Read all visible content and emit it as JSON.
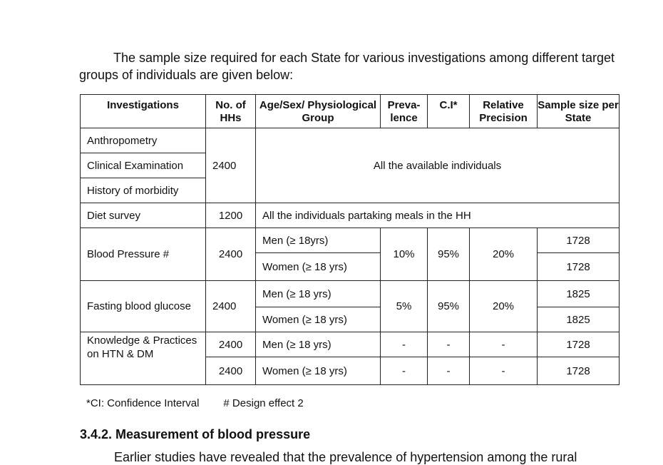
{
  "intro": {
    "text": "The sample size required for each State for various investigations among different target groups of individuals are given below:"
  },
  "table": {
    "headers": {
      "investigations": "Investigations",
      "hhs": "No. of HHs",
      "group": "Age/Sex/ Physiological Group",
      "prevalence": "Preva- lence",
      "ci": "C.I*",
      "precision": "Relative Precision",
      "sample": "Sample size per State"
    },
    "rows": {
      "anthropometry": "Anthropometry",
      "clinical": "Clinical Examination",
      "morbidity": "History of morbidity",
      "group1_hhs": "2400",
      "all_individuals": "All the available individuals",
      "diet": "Diet survey",
      "diet_hhs": "1200",
      "diet_group": "All the individuals partaking meals in the HH",
      "bp": {
        "name": "Blood Pressure #",
        "hhs": "2400",
        "men": "Men (≥ 18yrs)",
        "women": "Women (≥ 18 yrs)",
        "prevalence": "10%",
        "ci": "95%",
        "precision": "20%",
        "sample_men": "1728",
        "sample_women": "1728"
      },
      "fbg": {
        "name": "Fasting blood glucose",
        "hhs": "2400",
        "men": "Men (≥ 18 yrs)",
        "women": "Women (≥ 18 yrs)",
        "prevalence": "5%",
        "ci": "95%",
        "precision": "20%",
        "sample_men": "1825",
        "sample_women": "1825"
      },
      "kp": {
        "name": "Knowledge & Practices on HTN & DM",
        "hhs_men": "2400",
        "hhs_women": "2400",
        "men": "Men (≥ 18 yrs)",
        "women": "Women (≥ 18 yrs)",
        "prevalence_men": "-",
        "ci_men": "-",
        "precision_men": "-",
        "prevalence_women": "-",
        "ci_women": "-",
        "precision_women": "-",
        "sample_men": "1728",
        "sample_women": "1728"
      }
    }
  },
  "footnote": {
    "ci": "*CI: Confidence Interval",
    "design": "# Design effect 2"
  },
  "section": {
    "title": "3.4.2. Measurement of blood pressure",
    "next_line": "Earlier studies have revealed that the prevalence of hypertension among the rural"
  }
}
